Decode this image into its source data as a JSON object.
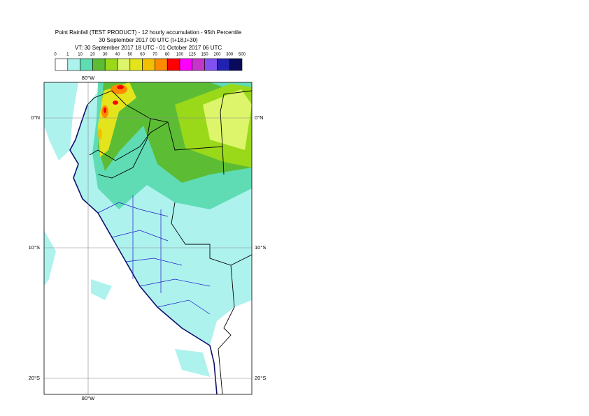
{
  "title": {
    "lines": [
      "Point Rainfall (TEST PRODUCT) - 12 hourly accumulation - 95th Percentile",
      "30 September 2017 00 UTC (t+18,t+30)",
      "VT: 30 September 2017 18 UTC - 01 October 2017 06 UTC"
    ]
  },
  "legend": {
    "labels": [
      "0",
      "1",
      "10",
      "20",
      "30",
      "40",
      "50",
      "60",
      "70",
      "80",
      "100",
      "125",
      "150",
      "200",
      "300",
      "500"
    ],
    "colors": [
      "#ffffff",
      "#aef2ee",
      "#5fdcb4",
      "#5cbd34",
      "#9ad81a",
      "#ddf56a",
      "#e4e41c",
      "#f2c000",
      "#ff8a00",
      "#ff0000",
      "#ff00ff",
      "#c435c8",
      "#8050f0",
      "#2222b0",
      "#0a0a5a"
    ]
  },
  "map": {
    "meridian_label": "80°W",
    "parallel_labels": [
      "0°N",
      "10°S",
      "20°S"
    ]
  }
}
